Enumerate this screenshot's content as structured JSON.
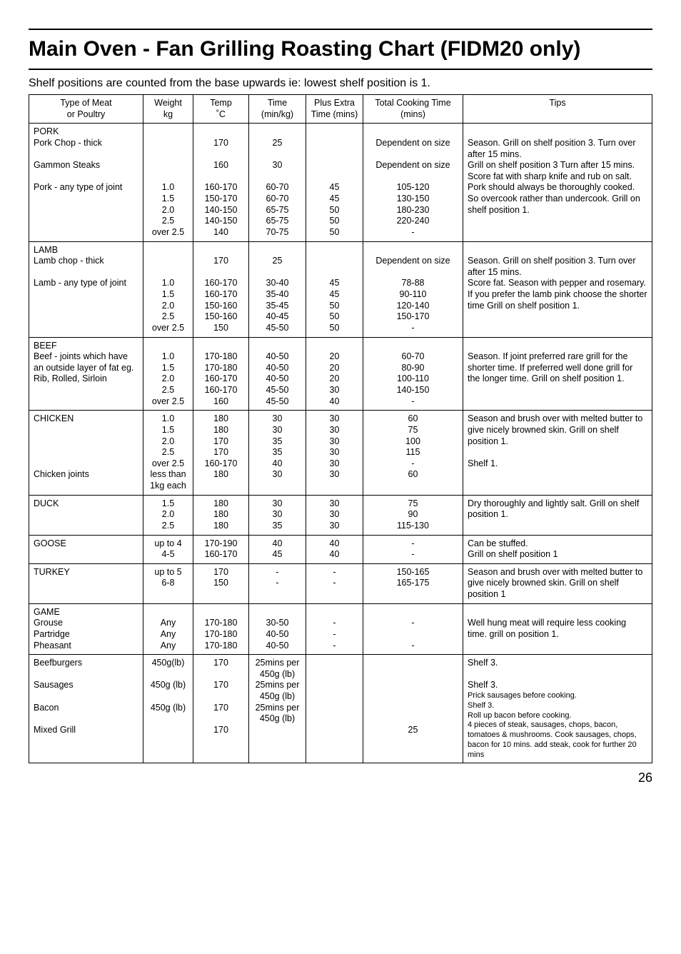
{
  "page": {
    "title": "Main Oven - Fan Grilling Roasting Chart  (FIDM20 only)",
    "intro": "Shelf positions are counted from the base upwards ie: lowest shelf position is 1.",
    "pageNumber": "26"
  },
  "headers": {
    "type": "Type of Meat\nor Poultry",
    "weight": "Weight\nkg",
    "temp": "Temp\n˚C",
    "time": "Time\n(min/kg)",
    "plus": "Plus Extra\nTime (mins)",
    "total": "Total Cooking Time\n(mins)",
    "tips": "Tips"
  },
  "rows": [
    {
      "type": "PORK\nPork Chop - thick\n\nGammon Steaks\n\nPork - any type of joint",
      "weight": "\n\n\n\n\n1.0\n1.5\n2.0\n2.5\nover 2.5",
      "temp": "\n170\n\n160\n\n160-170\n150-170\n140-150\n140-150\n140",
      "time": "\n25\n\n30\n\n60-70\n60-70\n65-75\n65-75\n70-75",
      "plus": "\n\n\n\n\n45\n45\n50\n50\n50",
      "total": "\nDependent on size\n\nDependent on size\n\n105-120\n130-150\n180-230\n220-240\n-",
      "tips": "\nSeason. Grill on shelf position 3. Turn over after 15 mins.\nGrill on shelf position 3 Turn after 15 mins.\nScore fat with sharp knife and rub on salt. Pork should always be thoroughly cooked. So overcook rather than undercook. Grill on shelf position 1.",
      "tipsRaw": true
    },
    {
      "type": "LAMB\nLamb chop - thick\n\nLamb - any type of joint",
      "weight": "\n\n\n1.0\n1.5\n2.0\n2.5\nover 2.5",
      "temp": "\n170\n\n160-170\n160-170\n150-160\n150-160\n150",
      "time": "\n25\n\n30-40\n35-40\n35-45\n40-45\n45-50",
      "plus": "\n\n\n45\n45\n50\n50\n50",
      "total": "\nDependent on size\n\n78-88\n90-110\n120-140\n150-170\n-",
      "tips": "\nSeason. Grill on shelf position 3. Turn over after 15 mins.\nScore fat. Season with pepper and rosemary. If you prefer the lamb pink choose the shorter time Grill on shelf position 1."
    },
    {
      "type": "BEEF\nBeef - joints which have an outside layer of fat eg. Rib, Rolled, Sirloin",
      "weight": "\n1.0\n1.5\n2.0\n2.5\nover 2.5",
      "temp": "\n170-180\n170-180\n160-170\n160-170\n160",
      "time": "\n40-50\n40-50\n40-50\n45-50\n45-50",
      "plus": "\n20\n20\n20\n30\n40",
      "total": "\n60-70\n80-90\n100-110\n140-150\n-",
      "tips": "\nSeason. If joint preferred rare grill for the shorter time. If preferred well done grill for the longer time. Grill on shelf position 1."
    },
    {
      "type": "CHICKEN\n\n\n\n\nChicken joints",
      "weight": "1.0\n1.5\n2.0\n2.5\nover 2.5\nless than 1kg each",
      "temp": "180\n180\n170\n170\n160-170\n180",
      "time": "30\n30\n35\n35\n40\n30",
      "plus": "30\n30\n30\n30\n30\n30",
      "total": "60\n75\n100\n115\n-\n60",
      "tips": "Season and brush over with melted butter to give nicely browned skin. Grill on shelf position 1.\n\nShelf 1."
    },
    {
      "type": "DUCK",
      "weight": "1.5\n2.0\n2.5",
      "temp": "180\n180\n180",
      "time": "30\n30\n35",
      "plus": "30\n30\n30",
      "total": "75\n90\n115-130",
      "tips": "Dry thoroughly and lightly salt. Grill on shelf position 1."
    },
    {
      "type": "GOOSE",
      "weight": "up to 4\n4-5",
      "temp": "170-190\n160-170",
      "time": "40\n45",
      "plus": "40\n40",
      "total": "-\n-",
      "tips": "Can be stuffed.\nGrill on shelf position 1"
    },
    {
      "type": "TURKEY",
      "weight": "up to 5\n6-8",
      "temp": "170\n150",
      "time": "-\n-",
      "plus": "-\n-",
      "total": "150-165\n165-175",
      "tips": "Season and brush over with melted butter to give nicely browned skin. Grill on shelf position 1"
    },
    {
      "type": "GAME\nGrouse\nPartridge\nPheasant",
      "weight": "\nAny\nAny\nAny",
      "temp": "\n170-180\n170-180\n170-180",
      "time": "\n30-50\n40-50\n40-50",
      "plus": "\n-\n-\n-",
      "total": "\n-\n\n-",
      "tips": "\nWell hung meat will require less cooking time. grill on position 1."
    },
    {
      "type": "Beefburgers\n\nSausages\n\nBacon\n\nMixed Grill",
      "weight": "450g(lb)\n\n450g (lb)\n\n450g (lb)",
      "temp": "170\n\n170\n\n170\n\n170",
      "time": "25mins per 450g (lb)\n25mins per 450g (lb)\n25mins per 450g (lb)",
      "plus": "",
      "total": "\n\n\n\n\n\n25",
      "tips": "Shelf 3.\n\nShelf 3.\nPrick sausages before cooking.\nShelf 3.\nRoll up bacon before cooking.\n4 pieces of steak, sausages, chops, bacon, tomatoes &  mushrooms. Cook sausages, chops, bacon for 10 mins. add steak, cook for further 20 mins",
      "tipsSmall": true
    }
  ]
}
